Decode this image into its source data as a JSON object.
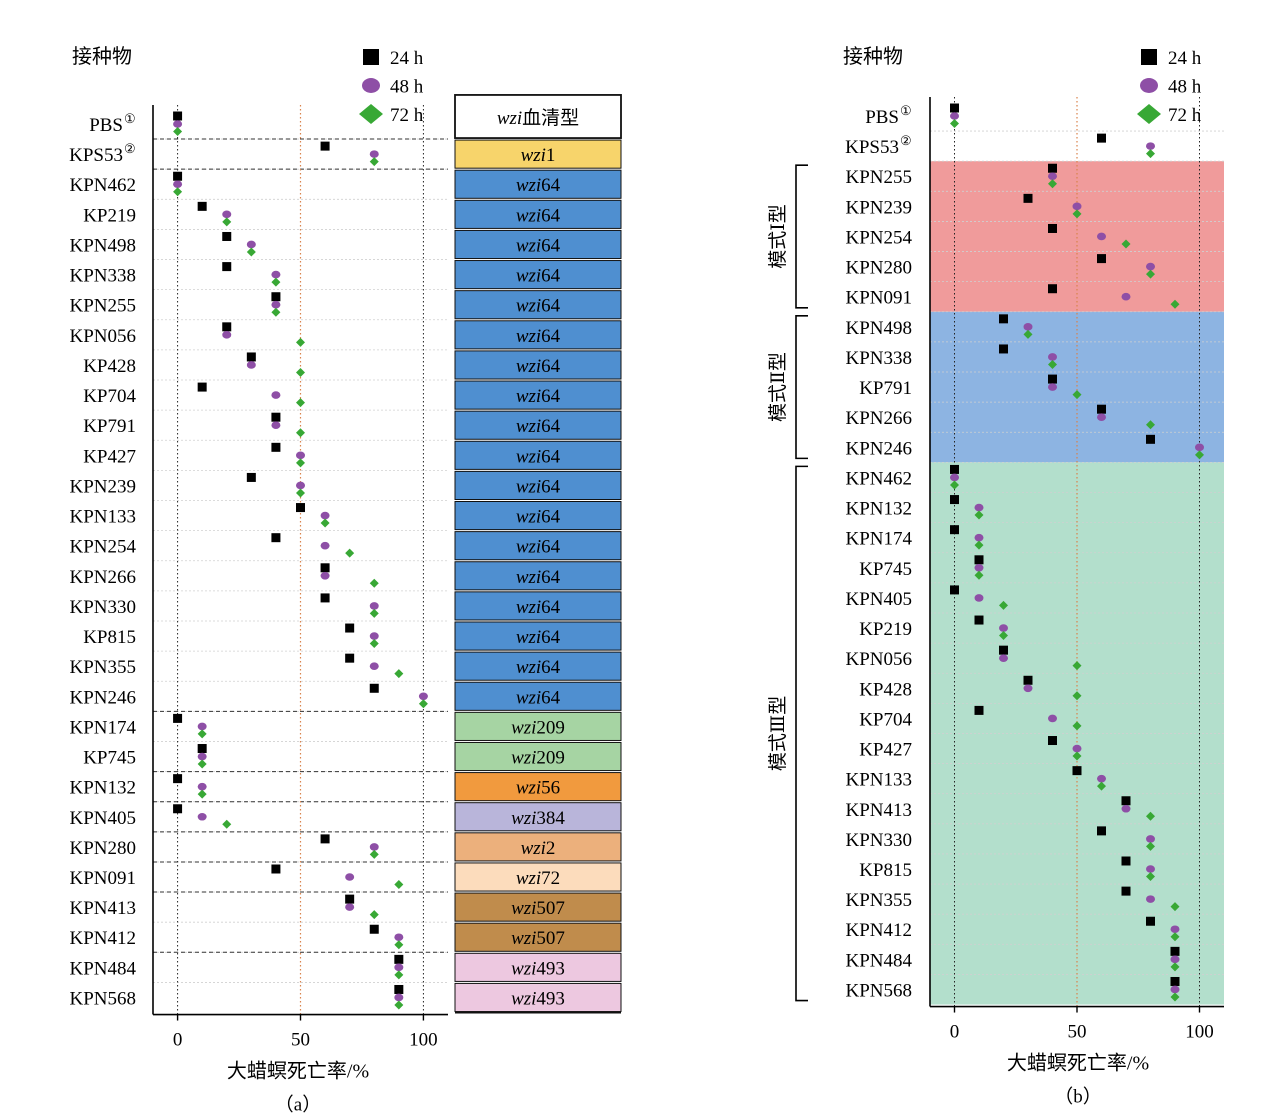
{
  "figure": {
    "inoculum_label": "接种物",
    "x_axis_label": "大蜡螟死亡率/%",
    "legend": {
      "s24": "24 h",
      "s48": "48 h",
      "s72": "72 h"
    },
    "colors": {
      "s24": "#000000",
      "s48": "#8e4fa6",
      "s72": "#38a835",
      "ref_line": "#d9834c"
    }
  },
  "chart_data": [
    {
      "panel_label": "（a）",
      "type": "scatter",
      "xlabel": "大蜡螟死亡率/%",
      "xlim": [
        -10,
        110
      ],
      "xticks": [
        0,
        50,
        100
      ],
      "reference_line": 50,
      "dotted_lines": [
        0,
        100
      ],
      "wzi_header": "血清型",
      "wzi_prefix": "wzi",
      "rows": [
        {
          "strain": "PBS",
          "sup": "①",
          "v24": 0,
          "v48": 0,
          "v72": 0,
          "wzi": "",
          "wzi_color": "#ffffff"
        },
        {
          "strain": "KPS53",
          "sup": "②",
          "v24": 60,
          "v48": 80,
          "v72": 80,
          "wzi": "1",
          "wzi_color": "#f7d46b"
        },
        {
          "strain": "KPN462",
          "v24": 0,
          "v48": 0,
          "v72": 0,
          "wzi": "64",
          "wzi_color": "#4f8fd0"
        },
        {
          "strain": "KP219",
          "v24": 10,
          "v48": 20,
          "v72": 20,
          "wzi": "64",
          "wzi_color": "#4f8fd0"
        },
        {
          "strain": "KPN498",
          "v24": 20,
          "v48": 30,
          "v72": 30,
          "wzi": "64",
          "wzi_color": "#4f8fd0"
        },
        {
          "strain": "KPN338",
          "v24": 20,
          "v48": 40,
          "v72": 40,
          "wzi": "64",
          "wzi_color": "#4f8fd0"
        },
        {
          "strain": "KPN255",
          "v24": 40,
          "v48": 40,
          "v72": 40,
          "wzi": "64",
          "wzi_color": "#4f8fd0"
        },
        {
          "strain": "KPN056",
          "v24": 20,
          "v48": 20,
          "v72": 50,
          "wzi": "64",
          "wzi_color": "#4f8fd0"
        },
        {
          "strain": "KP428",
          "v24": 30,
          "v48": 30,
          "v72": 50,
          "wzi": "64",
          "wzi_color": "#4f8fd0"
        },
        {
          "strain": "KP704",
          "v24": 10,
          "v48": 40,
          "v72": 50,
          "wzi": "64",
          "wzi_color": "#4f8fd0"
        },
        {
          "strain": "KP791",
          "v24": 40,
          "v48": 40,
          "v72": 50,
          "wzi": "64",
          "wzi_color": "#4f8fd0"
        },
        {
          "strain": "KP427",
          "v24": 40,
          "v48": 50,
          "v72": 50,
          "wzi": "64",
          "wzi_color": "#4f8fd0"
        },
        {
          "strain": "KPN239",
          "v24": 30,
          "v48": 50,
          "v72": 50,
          "wzi": "64",
          "wzi_color": "#4f8fd0"
        },
        {
          "strain": "KPN133",
          "v24": 50,
          "v48": 60,
          "v72": 60,
          "wzi": "64",
          "wzi_color": "#4f8fd0"
        },
        {
          "strain": "KPN254",
          "v24": 40,
          "v48": 60,
          "v72": 70,
          "wzi": "64",
          "wzi_color": "#4f8fd0"
        },
        {
          "strain": "KPN266",
          "v24": 60,
          "v48": 60,
          "v72": 80,
          "wzi": "64",
          "wzi_color": "#4f8fd0"
        },
        {
          "strain": "KPN330",
          "v24": 60,
          "v48": 80,
          "v72": 80,
          "wzi": "64",
          "wzi_color": "#4f8fd0"
        },
        {
          "strain": "KP815",
          "v24": 70,
          "v48": 80,
          "v72": 80,
          "wzi": "64",
          "wzi_color": "#4f8fd0"
        },
        {
          "strain": "KPN355",
          "v24": 70,
          "v48": 80,
          "v72": 90,
          "wzi": "64",
          "wzi_color": "#4f8fd0"
        },
        {
          "strain": "KPN246",
          "v24": 80,
          "v48": 100,
          "v72": 100,
          "wzi": "64",
          "wzi_color": "#4f8fd0"
        },
        {
          "strain": "KPN174",
          "v24": 0,
          "v48": 10,
          "v72": 10,
          "wzi": "209",
          "wzi_color": "#a6d4a3"
        },
        {
          "strain": "KP745",
          "v24": 10,
          "v48": 10,
          "v72": 10,
          "wzi": "209",
          "wzi_color": "#a6d4a3"
        },
        {
          "strain": "KPN132",
          "v24": 0,
          "v48": 10,
          "v72": 10,
          "wzi": "56",
          "wzi_color": "#f19a3e"
        },
        {
          "strain": "KPN405",
          "v24": 0,
          "v48": 10,
          "v72": 20,
          "wzi": "384",
          "wzi_color": "#b9b5da"
        },
        {
          "strain": "KPN280",
          "v24": 60,
          "v48": 80,
          "v72": 80,
          "wzi": "2",
          "wzi_color": "#ecb07c"
        },
        {
          "strain": "KPN091",
          "v24": 40,
          "v48": 70,
          "v72": 90,
          "wzi": "72",
          "wzi_color": "#fcdcbc"
        },
        {
          "strain": "KPN413",
          "v24": 70,
          "v48": 70,
          "v72": 80,
          "wzi": "507",
          "wzi_color": "#c08c4c"
        },
        {
          "strain": "KPN412",
          "v24": 80,
          "v48": 90,
          "v72": 90,
          "wzi": "507",
          "wzi_color": "#c08c4c"
        },
        {
          "strain": "KPN484",
          "v24": 90,
          "v48": 90,
          "v72": 90,
          "wzi": "493",
          "wzi_color": "#edc8e0"
        },
        {
          "strain": "KPN568",
          "v24": 90,
          "v48": 90,
          "v72": 90,
          "wzi": "493",
          "wzi_color": "#edc8e0"
        }
      ]
    },
    {
      "panel_label": "（b）",
      "type": "scatter",
      "xlabel": "大蜡螟死亡率/%",
      "xlim": [
        -10,
        110
      ],
      "xticks": [
        0,
        50,
        100
      ],
      "reference_line": 50,
      "dotted_lines": [
        0,
        100
      ],
      "groups": [
        {
          "label": "模式Ⅰ型",
          "start_row": 2,
          "end_row": 6,
          "color": "#f09b9b"
        },
        {
          "label": "模式Ⅱ型",
          "start_row": 7,
          "end_row": 11,
          "color": "#8db4e2"
        },
        {
          "label": "模式Ⅲ型",
          "start_row": 12,
          "end_row": 29,
          "color": "#b3dfcc"
        }
      ],
      "rows": [
        {
          "strain": "PBS",
          "sup": "①",
          "v24": 0,
          "v48": 0,
          "v72": 0
        },
        {
          "strain": "KPS53",
          "sup": "②",
          "v24": 60,
          "v48": 80,
          "v72": 80
        },
        {
          "strain": "KPN255",
          "v24": 40,
          "v48": 40,
          "v72": 40
        },
        {
          "strain": "KPN239",
          "v24": 30,
          "v48": 50,
          "v72": 50
        },
        {
          "strain": "KPN254",
          "v24": 40,
          "v48": 60,
          "v72": 70
        },
        {
          "strain": "KPN280",
          "v24": 60,
          "v48": 80,
          "v72": 80
        },
        {
          "strain": "KPN091",
          "v24": 40,
          "v48": 70,
          "v72": 90
        },
        {
          "strain": "KPN498",
          "v24": 20,
          "v48": 30,
          "v72": 30
        },
        {
          "strain": "KPN338",
          "v24": 20,
          "v48": 40,
          "v72": 40
        },
        {
          "strain": "KP791",
          "v24": 40,
          "v48": 40,
          "v72": 50
        },
        {
          "strain": "KPN266",
          "v24": 60,
          "v48": 60,
          "v72": 80
        },
        {
          "strain": "KPN246",
          "v24": 80,
          "v48": 100,
          "v72": 100
        },
        {
          "strain": "KPN462",
          "v24": 0,
          "v48": 0,
          "v72": 0
        },
        {
          "strain": "KPN132",
          "v24": 0,
          "v48": 10,
          "v72": 10
        },
        {
          "strain": "KPN174",
          "v24": 0,
          "v48": 10,
          "v72": 10
        },
        {
          "strain": "KP745",
          "v24": 10,
          "v48": 10,
          "v72": 10
        },
        {
          "strain": "KPN405",
          "v24": 0,
          "v48": 10,
          "v72": 20
        },
        {
          "strain": "KP219",
          "v24": 10,
          "v48": 20,
          "v72": 20
        },
        {
          "strain": "KPN056",
          "v24": 20,
          "v48": 20,
          "v72": 50
        },
        {
          "strain": "KP428",
          "v24": 30,
          "v48": 30,
          "v72": 50
        },
        {
          "strain": "KP704",
          "v24": 10,
          "v48": 40,
          "v72": 50
        },
        {
          "strain": "KP427",
          "v24": 40,
          "v48": 50,
          "v72": 50
        },
        {
          "strain": "KPN133",
          "v24": 50,
          "v48": 60,
          "v72": 60
        },
        {
          "strain": "KPN413",
          "v24": 70,
          "v48": 70,
          "v72": 80
        },
        {
          "strain": "KPN330",
          "v24": 60,
          "v48": 80,
          "v72": 80
        },
        {
          "strain": "KP815",
          "v24": 70,
          "v48": 80,
          "v72": 80
        },
        {
          "strain": "KPN355",
          "v24": 70,
          "v48": 80,
          "v72": 90
        },
        {
          "strain": "KPN412",
          "v24": 80,
          "v48": 90,
          "v72": 90
        },
        {
          "strain": "KPN484",
          "v24": 90,
          "v48": 90,
          "v72": 90
        },
        {
          "strain": "KPN568",
          "v24": 90,
          "v48": 90,
          "v72": 90
        }
      ]
    }
  ]
}
